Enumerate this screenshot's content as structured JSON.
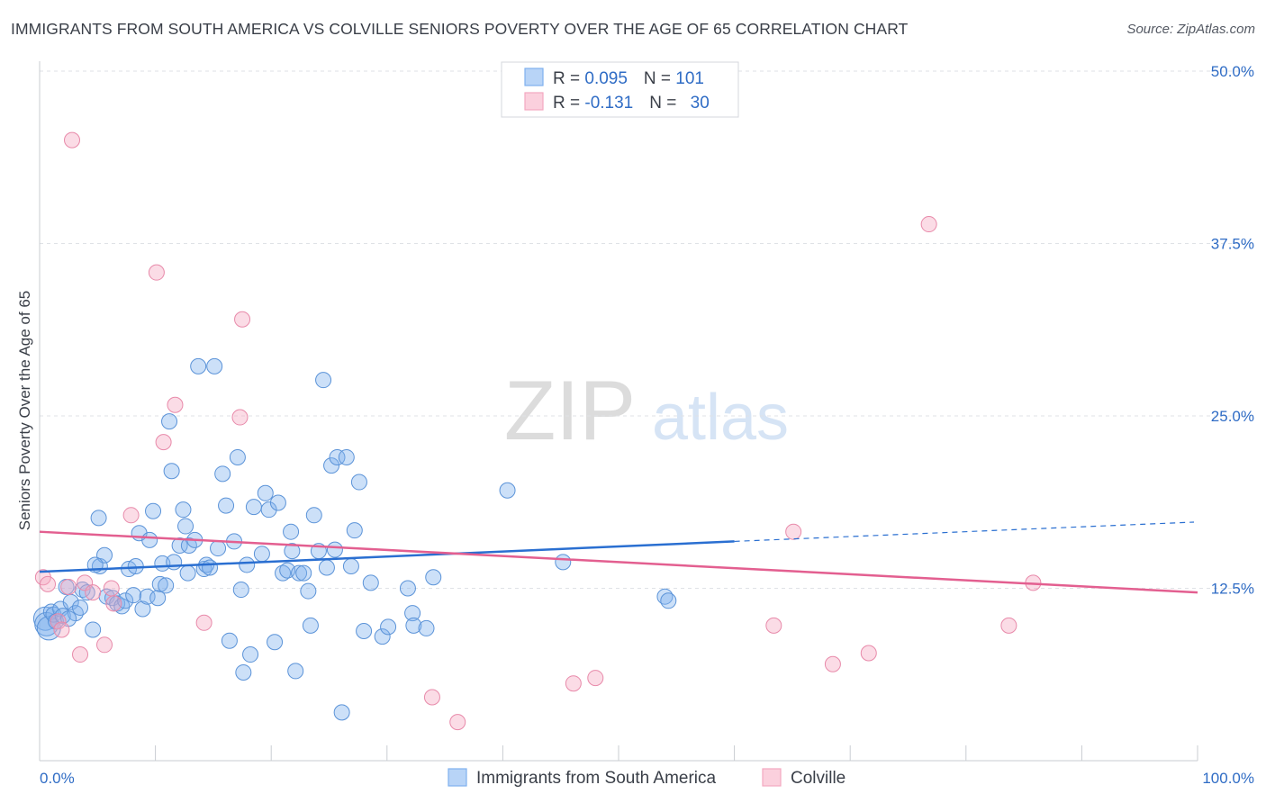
{
  "header": {
    "title": "IMMIGRANTS FROM SOUTH AMERICA VS COLVILLE SENIORS POVERTY OVER THE AGE OF 65 CORRELATION CHART",
    "source": "Source: ZipAtlas.com"
  },
  "watermark": {
    "zip": "ZIP",
    "atlas": "atlas"
  },
  "legend_top": {
    "rows": [
      {
        "r_label": "R = ",
        "r_value": "0.095",
        "n_label": "N = ",
        "n_value": "101",
        "color": "#7fb1ee"
      },
      {
        "r_label": "R = ",
        "r_value": "-0.131",
        "n_label": "N = ",
        "n_value": "30",
        "color": "#f4a8c0"
      }
    ]
  },
  "chart_data": {
    "type": "scatter",
    "title": "IMMIGRANTS FROM SOUTH AMERICA VS COLVILLE SENIORS POVERTY OVER THE AGE OF 65 CORRELATION CHART",
    "xlabel": "",
    "ylabel": "Seniors Poverty Over the Age of 65",
    "xlim": [
      0,
      100
    ],
    "ylim": [
      0,
      50
    ],
    "x_tick_labels": [
      "0.0%",
      "100.0%"
    ],
    "y_ticks": [
      12.5,
      25.0,
      37.5,
      50.0
    ],
    "y_tick_labels": [
      "12.5%",
      "25.0%",
      "37.5%",
      "50.0%"
    ],
    "grid": "horizontal dashed",
    "legend_position": "bottom-center",
    "series": [
      {
        "name": "Immigrants from South America",
        "color": "#7fb1ee",
        "stroke": "#5b93d8",
        "trend": {
          "x0": 0,
          "y0": 13.7,
          "x1": 60,
          "y1": 15.9,
          "dash_to_x": 100,
          "dash_to_y": 17.3,
          "color": "#2a6fd1"
        },
        "points": [
          [
            0.5,
            10.3
          ],
          [
            0.6,
            9.9
          ],
          [
            0.8,
            9.6
          ],
          [
            1.0,
            10.8
          ],
          [
            1.2,
            10.6
          ],
          [
            1.4,
            10.1
          ],
          [
            1.8,
            11.0
          ],
          [
            2.0,
            10.5
          ],
          [
            2.3,
            12.6
          ],
          [
            2.7,
            11.5
          ],
          [
            3.1,
            10.7
          ],
          [
            3.5,
            11.1
          ],
          [
            3.7,
            12.4
          ],
          [
            4.1,
            12.2
          ],
          [
            4.6,
            9.5
          ],
          [
            5.1,
            17.6
          ],
          [
            5.2,
            14.1
          ],
          [
            5.6,
            14.9
          ],
          [
            5.8,
            11.9
          ],
          [
            6.3,
            11.8
          ],
          [
            6.7,
            11.4
          ],
          [
            7.1,
            11.2
          ],
          [
            7.4,
            11.6
          ],
          [
            7.7,
            13.9
          ],
          [
            8.1,
            12.0
          ],
          [
            8.3,
            14.1
          ],
          [
            8.6,
            16.5
          ],
          [
            8.9,
            11.0
          ],
          [
            9.3,
            11.9
          ],
          [
            9.5,
            16.0
          ],
          [
            9.8,
            18.1
          ],
          [
            10.2,
            11.8
          ],
          [
            10.4,
            12.8
          ],
          [
            10.6,
            14.3
          ],
          [
            10.9,
            12.7
          ],
          [
            11.2,
            24.6
          ],
          [
            11.4,
            21.0
          ],
          [
            11.6,
            14.4
          ],
          [
            12.1,
            15.6
          ],
          [
            12.4,
            18.2
          ],
          [
            12.6,
            17.0
          ],
          [
            12.8,
            13.6
          ],
          [
            12.9,
            15.6
          ],
          [
            13.4,
            16.0
          ],
          [
            13.7,
            28.6
          ],
          [
            14.2,
            13.9
          ],
          [
            14.4,
            14.2
          ],
          [
            14.7,
            14.0
          ],
          [
            15.1,
            28.6
          ],
          [
            15.4,
            15.4
          ],
          [
            15.8,
            20.8
          ],
          [
            16.1,
            18.5
          ],
          [
            16.4,
            8.7
          ],
          [
            16.8,
            15.9
          ],
          [
            17.1,
            22.0
          ],
          [
            17.4,
            12.4
          ],
          [
            17.6,
            6.4
          ],
          [
            17.9,
            14.2
          ],
          [
            18.2,
            7.7
          ],
          [
            18.5,
            18.4
          ],
          [
            19.2,
            15.0
          ],
          [
            19.5,
            19.4
          ],
          [
            19.8,
            18.2
          ],
          [
            20.3,
            8.6
          ],
          [
            20.6,
            18.7
          ],
          [
            21.0,
            13.6
          ],
          [
            21.4,
            13.8
          ],
          [
            21.7,
            16.6
          ],
          [
            21.8,
            15.2
          ],
          [
            22.1,
            6.5
          ],
          [
            22.4,
            13.6
          ],
          [
            22.8,
            13.6
          ],
          [
            23.2,
            12.3
          ],
          [
            23.4,
            9.8
          ],
          [
            23.7,
            17.8
          ],
          [
            24.1,
            15.2
          ],
          [
            24.5,
            27.6
          ],
          [
            24.8,
            14.0
          ],
          [
            25.2,
            21.4
          ],
          [
            25.5,
            15.3
          ],
          [
            25.7,
            22.0
          ],
          [
            26.1,
            3.5
          ],
          [
            26.5,
            22.0
          ],
          [
            26.9,
            14.1
          ],
          [
            27.2,
            16.7
          ],
          [
            27.6,
            20.2
          ],
          [
            28.0,
            9.4
          ],
          [
            28.6,
            12.9
          ],
          [
            29.6,
            9.0
          ],
          [
            30.1,
            9.7
          ],
          [
            31.8,
            12.5
          ],
          [
            32.2,
            10.7
          ],
          [
            32.3,
            9.8
          ],
          [
            33.4,
            9.6
          ],
          [
            34.0,
            13.3
          ],
          [
            40.4,
            19.6
          ],
          [
            45.2,
            14.4
          ],
          [
            54.0,
            11.9
          ],
          [
            54.3,
            11.6
          ],
          [
            4.8,
            14.2
          ],
          [
            2.5,
            10.3
          ]
        ]
      },
      {
        "name": "Colville",
        "color": "#f4a8c0",
        "stroke": "#e88aaa",
        "trend": {
          "x0": 0,
          "y0": 16.6,
          "x1": 100,
          "y1": 12.2,
          "color": "#e35f90"
        },
        "points": [
          [
            0.3,
            13.3
          ],
          [
            0.7,
            12.8
          ],
          [
            1.6,
            10.1
          ],
          [
            1.9,
            9.5
          ],
          [
            2.5,
            12.6
          ],
          [
            2.8,
            45.0
          ],
          [
            3.5,
            7.7
          ],
          [
            3.9,
            12.9
          ],
          [
            4.6,
            12.2
          ],
          [
            5.6,
            8.4
          ],
          [
            6.2,
            12.5
          ],
          [
            6.4,
            11.4
          ],
          [
            7.9,
            17.8
          ],
          [
            10.1,
            35.4
          ],
          [
            10.7,
            23.1
          ],
          [
            11.7,
            25.8
          ],
          [
            14.2,
            10.0
          ],
          [
            17.3,
            24.9
          ],
          [
            17.5,
            32.0
          ],
          [
            33.9,
            4.6
          ],
          [
            36.1,
            2.8
          ],
          [
            46.1,
            5.6
          ],
          [
            48.0,
            6.0
          ],
          [
            63.4,
            9.8
          ],
          [
            65.1,
            16.6
          ],
          [
            68.5,
            7.0
          ],
          [
            71.6,
            7.8
          ],
          [
            76.8,
            38.9
          ],
          [
            83.7,
            9.8
          ],
          [
            85.8,
            12.9
          ]
        ]
      }
    ]
  },
  "legend_bottom": [
    {
      "label": "Immigrants from South America",
      "color": "#b8d4f7",
      "stroke": "#7fb1ee"
    },
    {
      "label": "Colville",
      "color": "#fbd0dd",
      "stroke": "#f4a8c0"
    }
  ]
}
